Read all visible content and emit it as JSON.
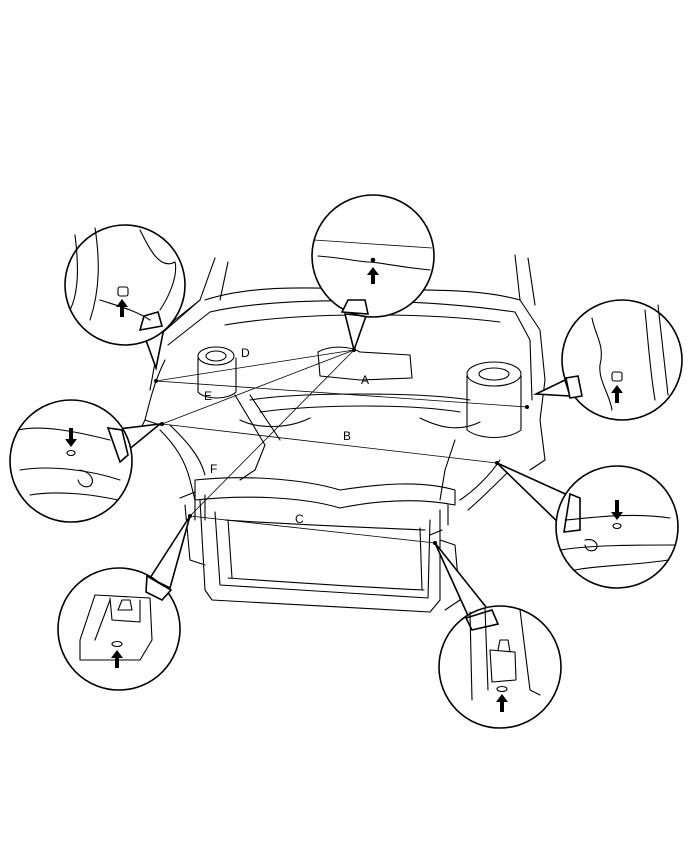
{
  "diagram": {
    "measurement_labels": {
      "A": "A",
      "B": "B",
      "C": "C",
      "D": "D",
      "E": "E",
      "F": "F"
    },
    "detail_callouts": [
      "top-center",
      "upper-left",
      "upper-right",
      "left",
      "right",
      "lower-left",
      "lower-right"
    ],
    "colors": {
      "line": "#000000",
      "background": "#ffffff"
    }
  }
}
